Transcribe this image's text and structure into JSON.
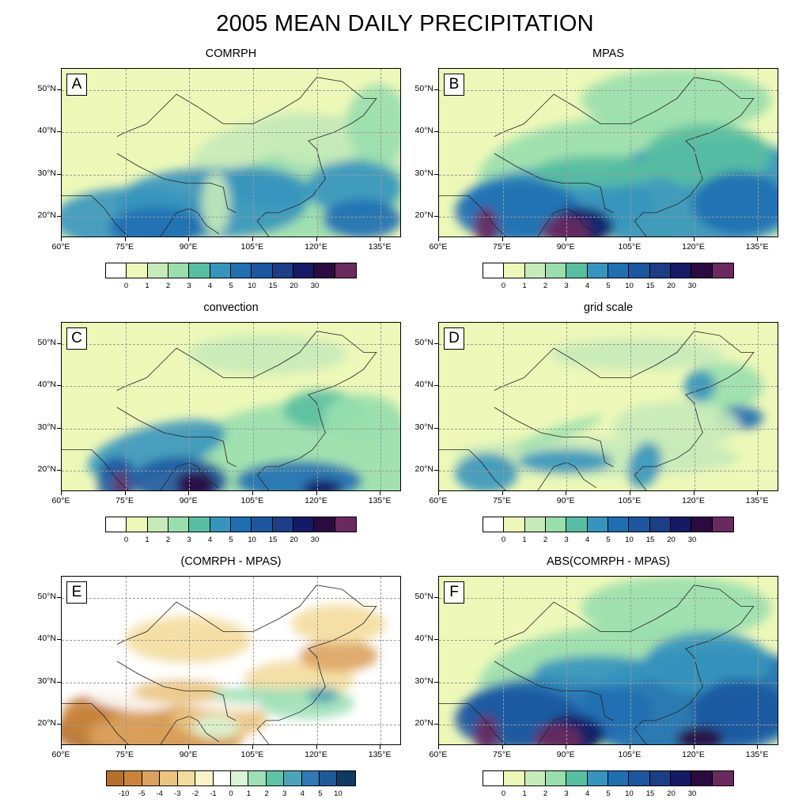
{
  "title": "2005 MEAN DAILY PRECIPITATION",
  "lon_labels": [
    "60°E",
    "75°E",
    "90°E",
    "105°E",
    "120°E",
    "135°E"
  ],
  "lat_labels": [
    "50°N",
    "40°N",
    "30°N",
    "20°N"
  ],
  "precip_colorbar": {
    "colors": [
      "#ffffff",
      "#edf8b8",
      "#c7eab9",
      "#99dfae",
      "#57bfa1",
      "#3695be",
      "#1f6fb3",
      "#1c56a0",
      "#1c3e86",
      "#151a66",
      "#2a0a3f",
      "#6b2a5f"
    ],
    "labels": [
      "0",
      "1",
      "2",
      "3",
      "4",
      "5",
      "10",
      "15",
      "20",
      "30"
    ]
  },
  "diff_colorbar": {
    "colors": [
      "#b5702a",
      "#c9843a",
      "#dba25e",
      "#ebc47f",
      "#f3dd9c",
      "#fbf4c8",
      "#ffffff",
      "#d9f5d5",
      "#9fe0b8",
      "#5cc4a4",
      "#4aa6b6",
      "#2e79b6",
      "#1d5a9a",
      "#0e3b64"
    ],
    "labels": [
      "-10",
      "-5",
      "-4",
      "-3",
      "-2",
      "-1",
      "0",
      "1",
      "2",
      "3",
      "4",
      "5",
      "10"
    ]
  },
  "panels": [
    {
      "letter": "A",
      "title": "COMRPH",
      "scheme": "precip"
    },
    {
      "letter": "B",
      "title": "MPAS",
      "scheme": "precip"
    },
    {
      "letter": "C",
      "title": "convection",
      "scheme": "precip"
    },
    {
      "letter": "D",
      "title": "grid scale",
      "scheme": "precip"
    },
    {
      "letter": "E",
      "title": "(COMRPH - MPAS)",
      "scheme": "diff"
    },
    {
      "letter": "F",
      "title": "ABS(COMRPH - MPAS)",
      "scheme": "precip"
    }
  ]
}
